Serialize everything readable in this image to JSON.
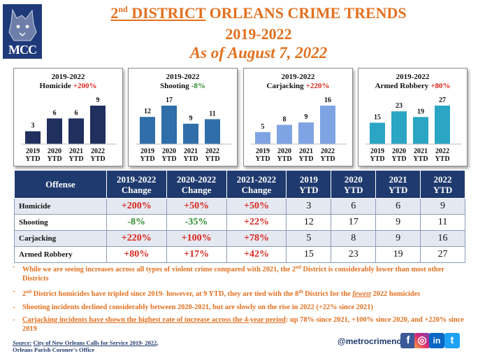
{
  "header": {
    "logo_text": "MCC",
    "title_prefix_num": "2",
    "title_prefix_sup": "nd",
    "title_prefix_rest": " DISTRICT",
    "title_rest": " ORLEANS CRIME TRENDS",
    "years": "2019-2022",
    "as_of": "As of August 7, 2022"
  },
  "colors": {
    "navy": "#1f3a6e",
    "orange": "#e2701f",
    "red": "#d8261c",
    "green": "#2e8b2e"
  },
  "chart_data": [
    {
      "type": "bar",
      "title": "2019-2022",
      "subtitle": "Homicide",
      "change": "+200%",
      "change_color": "red",
      "categories": [
        "2019 YTD",
        "2020 YTD",
        "2021 YTD",
        "2022 YTD"
      ],
      "values": [
        3,
        6,
        6,
        9
      ],
      "bar_colors": [
        "#1f2f5e",
        "#1f2f5e",
        "#1f2f5e",
        "#1f2f5e"
      ]
    },
    {
      "type": "bar",
      "title": "2019-2022",
      "subtitle": "Shooting",
      "change": "-8%",
      "change_color": "green",
      "categories": [
        "2019 YTD",
        "2020 YTD",
        "2021 YTD",
        "2022 YTD"
      ],
      "values": [
        12,
        17,
        9,
        11
      ],
      "bar_colors": [
        "#2f6ea8",
        "#2f6ea8",
        "#2f6ea8",
        "#2f6ea8"
      ]
    },
    {
      "type": "bar",
      "title": "2019-2022",
      "subtitle": "Carjacking",
      "change": "+220%",
      "change_color": "red",
      "categories": [
        "2019 YTD",
        "2020 YTD",
        "2021 YTD",
        "2022 YTD"
      ],
      "values": [
        5,
        8,
        9,
        16
      ],
      "bar_colors": [
        "#7fa4e4",
        "#7fa4e4",
        "#7fa4e4",
        "#7fa4e4"
      ]
    },
    {
      "type": "bar",
      "title": "2019-2022",
      "subtitle": "Armed Robbery",
      "change": "+80%",
      "change_color": "red",
      "categories": [
        "2019 YTD",
        "2020 YTD",
        "2021 YTD",
        "2022 YTD"
      ],
      "values": [
        15,
        23,
        19,
        27
      ],
      "bar_colors": [
        "#2aa6c4",
        "#2aa6c4",
        "#2aa6c4",
        "#2aa6c4"
      ]
    }
  ],
  "table": {
    "headers": [
      [
        "Offense"
      ],
      [
        "2019-2022",
        "Change"
      ],
      [
        "2020-2022",
        "Change"
      ],
      [
        "2021-2022",
        "Change"
      ],
      [
        "2019",
        "YTD"
      ],
      [
        "2020",
        "YTD"
      ],
      [
        "2021",
        "YTD"
      ],
      [
        "2022",
        "YTD"
      ]
    ],
    "rows": [
      {
        "offense": "Homicide",
        "c1": "+200%",
        "c1c": "red",
        "c2": "+50%",
        "c2c": "red",
        "c3": "+50%",
        "c3c": "red",
        "y2019": "3",
        "y2020": "6",
        "y2021": "6",
        "y2022": "9"
      },
      {
        "offense": "Shooting",
        "c1": "-8%",
        "c1c": "green",
        "c2": "-35%",
        "c2c": "green",
        "c3": "+22%",
        "c3c": "red",
        "y2019": "12",
        "y2020": "17",
        "y2021": "9",
        "y2022": "11"
      },
      {
        "offense": "Carjacking",
        "c1": "+220%",
        "c1c": "red",
        "c2": "+100%",
        "c2c": "red",
        "c3": "+78%",
        "c3c": "red",
        "y2019": "5",
        "y2020": "8",
        "y2021": "9",
        "y2022": "16"
      },
      {
        "offense": "Armed Robbery",
        "c1": "+80%",
        "c1c": "red",
        "c2": "+17%",
        "c2c": "red",
        "c3": "+42%",
        "c3c": "red",
        "y2019": "15",
        "y2020": "23",
        "y2021": "19",
        "y2022": "27"
      }
    ]
  },
  "bullets": {
    "b1_a": "While we are seeing increases across all types of violent crime compared with 2021, the 2",
    "b1_sup": "nd",
    "b1_b": " District is considerably lower than most other Districts",
    "b2_a": "2",
    "b2_sup1": "nd",
    "b2_b": " District homicides have tripled since 2019- however, at 9 YTD, they are tied with the 8",
    "b2_sup2": "th",
    "b2_c": " District for the ",
    "b2_em": "fewest",
    "b2_d": " 2022 homicides",
    "b3": "Shooting incidents declined considerably between 2020-2021, but are slowly on the rise in 2022 (+22% since 2021)",
    "b4_ul": "Carjacking incidents have shown the highest rate of increase across the 4-year period",
    "b4_rest": ": up 78% since 2021, +100% since 2020, and +220% since 2019"
  },
  "footer": {
    "source_label": "Source:",
    "source_text": "City of New Orleans Calls for Service 2019- 2022",
    "source_tail": ",",
    "source_line2": "Orleans Parish Coroner's Office",
    "handle": "@metrocrimenola",
    "social": [
      "f",
      "◎",
      "in",
      "t"
    ]
  }
}
